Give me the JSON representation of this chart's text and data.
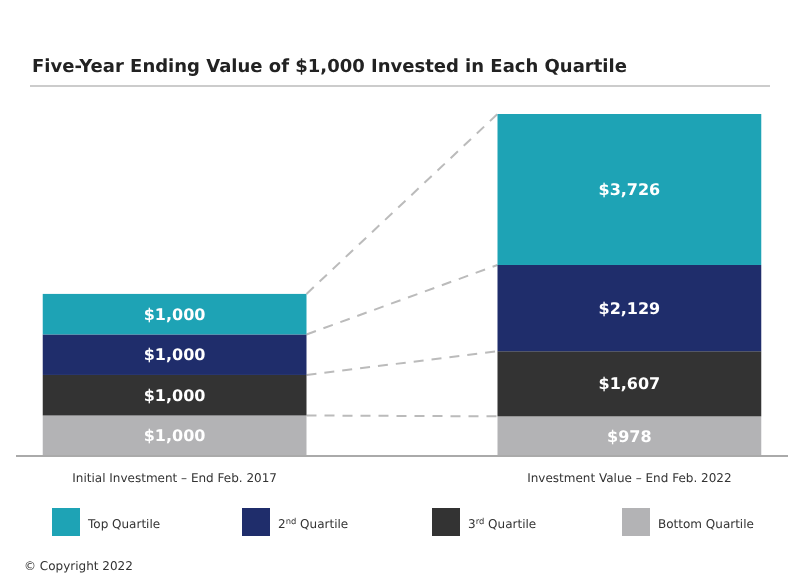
{
  "chart_data": {
    "type": "bar",
    "title": "Five-Year Ending Value of $1,000 Invested in Each Quartile",
    "categories": [
      "Initial Investment – End Feb. 2017",
      "Investment Value – End Feb. 2022"
    ],
    "stacked": true,
    "legend": "bottom",
    "series": [
      {
        "name": "Bottom Quartile",
        "color": "#b3b3b5",
        "values": [
          1000,
          978
        ],
        "value_labels": [
          "$1,000",
          "$978"
        ]
      },
      {
        "name": "3$^{rd}$ Quartile",
        "color": "#333333",
        "values": [
          1000,
          1607
        ],
        "value_labels": [
          "$1,000",
          "$1,607"
        ]
      },
      {
        "name": "2$^{nd}$ Quartile",
        "color": "#1f2d6b",
        "values": [
          1000,
          2129
        ],
        "value_labels": [
          "$1,000",
          "$2,129"
        ]
      },
      {
        "name": "Top Quartile",
        "color": "#1ea3b5",
        "values": [
          1000,
          3726
        ],
        "value_labels": [
          "$1,000",
          "$3,726"
        ]
      }
    ],
    "annotations": [
      "© Copyright 2022"
    ]
  }
}
